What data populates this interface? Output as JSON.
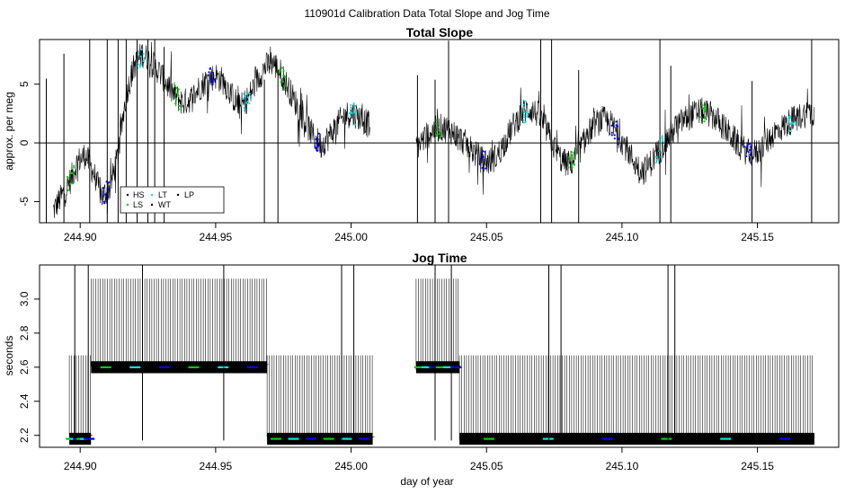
{
  "figure_title": "110901d   Calibration Data Total Slope and Jog Time",
  "xlabel": "day of year",
  "chart_data": [
    {
      "type": "line",
      "title": "Total Slope",
      "ylabel": "approx. per meg",
      "xlim": [
        244.885,
        245.18
      ],
      "ylim": [
        -6.8,
        8.8
      ],
      "xticks": [
        {
          "value": 244.9,
          "label": "244.90"
        },
        {
          "value": 244.95,
          "label": "244.95"
        },
        {
          "value": 245.0,
          "label": "245.00"
        },
        {
          "value": 245.05,
          "label": "245.05"
        },
        {
          "value": 245.1,
          "label": "245.10"
        },
        {
          "value": 245.15,
          "label": "245.15"
        }
      ],
      "yticks": [
        {
          "value": -5,
          "label": "-5"
        },
        {
          "value": 0,
          "label": "0"
        },
        {
          "value": 5,
          "label": "5"
        }
      ],
      "reference_line": 0,
      "legend": {
        "placement": "bottom-left",
        "entries": [
          {
            "name": "HS",
            "color": "#000000"
          },
          {
            "name": "LS",
            "color": "#00cc00"
          },
          {
            "name": "LT",
            "color": "#00e5ee"
          },
          {
            "name": "WT",
            "color": "#000000"
          },
          {
            "name": "LP",
            "color": "#000000"
          }
        ]
      },
      "series": [
        {
          "x": [
            244.89,
            244.893,
            244.896,
            244.899,
            244.902,
            244.905,
            244.908,
            244.911,
            244.914,
            244.917,
            244.92,
            244.923,
            244.926,
            244.929,
            244.932,
            244.935,
            244.938,
            244.941,
            244.944,
            244.947,
            244.95,
            244.953,
            244.956,
            244.959,
            244.962,
            244.965,
            244.968,
            244.971,
            244.974,
            244.977,
            244.98,
            244.983,
            244.986,
            244.989,
            244.992,
            244.995,
            244.998,
            245.001,
            245.004,
            245.007
          ],
          "y": [
            -5.8,
            -4.6,
            -3.4,
            -1.6,
            -1.0,
            -2.6,
            -4.6,
            -3.8,
            -1.0,
            4.2,
            6.6,
            7.6,
            6.9,
            6.1,
            5.0,
            4.0,
            3.4,
            3.8,
            4.7,
            5.4,
            5.7,
            5.2,
            4.0,
            3.0,
            3.8,
            5.2,
            6.4,
            6.9,
            6.0,
            4.6,
            3.2,
            1.8,
            0.6,
            -0.2,
            0.6,
            1.6,
            2.4,
            2.5,
            2.0,
            1.5
          ]
        },
        {
          "x": [
            245.024,
            245.027,
            245.03,
            245.033,
            245.036,
            245.039,
            245.042,
            245.045,
            245.048,
            245.051,
            245.054,
            245.057,
            245.06,
            245.063,
            245.066,
            245.069,
            245.072,
            245.075,
            245.078,
            245.081,
            245.084,
            245.087,
            245.09,
            245.093,
            245.096,
            245.099,
            245.102,
            245.105,
            245.108,
            245.111,
            245.114,
            245.117,
            245.12,
            245.123,
            245.126,
            245.129,
            245.132,
            245.135,
            245.138,
            245.141,
            245.144,
            245.147,
            245.15,
            245.153,
            245.156,
            245.159,
            245.162,
            245.165,
            245.168,
            245.171
          ],
          "y": [
            -0.4,
            0.4,
            1.0,
            1.3,
            1.2,
            0.6,
            0.0,
            -0.7,
            -1.4,
            -1.6,
            -1.1,
            0.2,
            1.5,
            2.5,
            2.9,
            2.4,
            1.2,
            -0.4,
            -1.6,
            -1.8,
            -0.8,
            0.6,
            1.6,
            2.0,
            1.6,
            0.6,
            -0.6,
            -1.8,
            -2.4,
            -1.6,
            -0.6,
            0.4,
            1.4,
            2.0,
            2.4,
            2.7,
            2.5,
            2.0,
            1.2,
            0.4,
            -0.4,
            -0.9,
            -0.8,
            0.0,
            0.8,
            1.3,
            1.8,
            2.2,
            2.5,
            2.6
          ]
        }
      ]
    },
    {
      "type": "line",
      "title": "Jog Time",
      "ylabel": "seconds",
      "xlim": [
        244.885,
        245.18
      ],
      "ylim": [
        2.13,
        3.2
      ],
      "xticks": [
        {
          "value": 244.9,
          "label": "244.90"
        },
        {
          "value": 244.95,
          "label": "244.95"
        },
        {
          "value": 245.0,
          "label": "245.00"
        },
        {
          "value": 245.05,
          "label": "245.05"
        },
        {
          "value": 245.1,
          "label": "245.10"
        },
        {
          "value": 245.15,
          "label": "245.15"
        }
      ],
      "yticks": [
        {
          "value": 2.2,
          "label": "2.2"
        },
        {
          "value": 2.4,
          "label": "2.4"
        },
        {
          "value": 2.6,
          "label": "2.6"
        },
        {
          "value": 2.8,
          "label": "2.8"
        },
        {
          "value": 3.0,
          "label": "3.0"
        }
      ],
      "segments": [
        {
          "x": [
            244.896,
            244.904
          ],
          "base": 2.18,
          "high": 2.67
        },
        {
          "x": [
            244.904,
            244.969
          ],
          "base": 2.6,
          "high": 3.12
        },
        {
          "x": [
            244.969,
            245.008
          ],
          "base": 2.18,
          "high": 2.67
        },
        {
          "x": [
            245.024,
            245.04
          ],
          "base": 2.6,
          "high": 3.12
        },
        {
          "x": [
            245.04,
            245.171
          ],
          "base": 2.18,
          "high": 2.67
        }
      ]
    }
  ],
  "colors": {
    "line": "#000000",
    "hs": "#0000ff",
    "ls": "#00cc00",
    "lt": "#00e5ee"
  }
}
